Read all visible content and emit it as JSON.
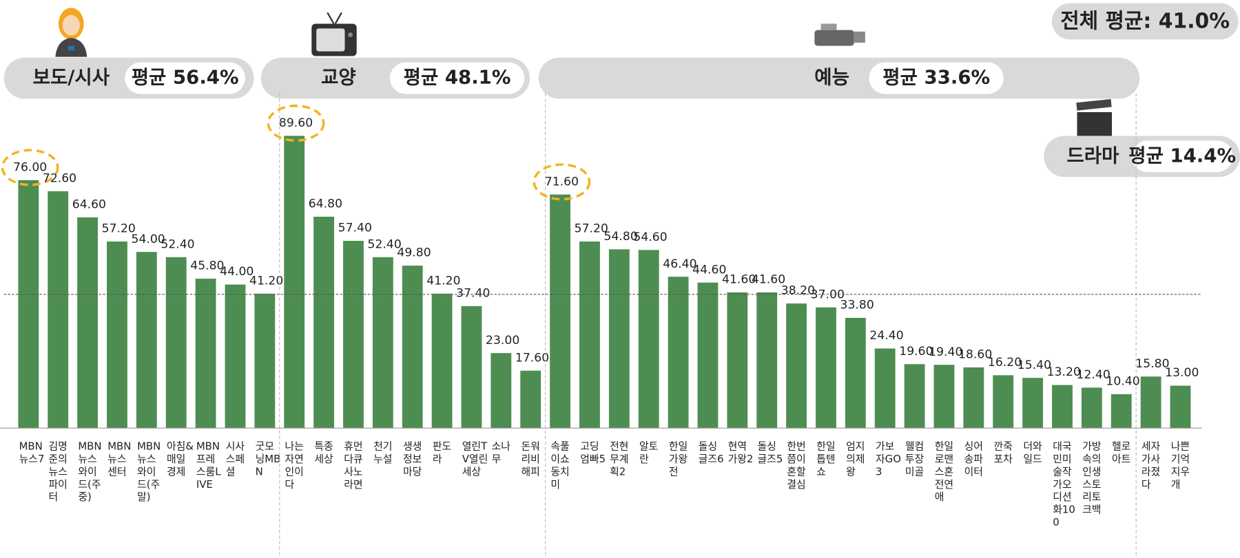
{
  "chart_data": {
    "type": "bar",
    "color": "#4e8d52",
    "overall": {
      "label": "전체 평균: 41.0%",
      "value": 41.0
    },
    "groups": [
      {
        "name": "보도/시사",
        "average_label": "평균 56.4%",
        "highlight": true,
        "categories": [
          "MBN뉴스7",
          "김명준의뉴스파이터",
          "MBN뉴스와이드(주중)",
          "MBN뉴스센터",
          "MBN뉴스와이드(주말)",
          "아침&매일경제",
          "MBN프레스룸LIVE",
          "시사스페셜",
          "굿모닝MBN"
        ],
        "values": [
          76.0,
          72.6,
          64.6,
          57.2,
          54.0,
          52.4,
          45.8,
          44.0,
          41.2
        ],
        "value_labels": [
          "76.00",
          "72.60",
          "64.60",
          "57.20",
          "54.00",
          "52.40",
          "45.80",
          "44.00",
          "41.20"
        ]
      },
      {
        "name": "교양",
        "average_label": "평균 48.1%",
        "highlight": true,
        "categories": [
          "나는자연인이다",
          "특종세상",
          "휴먼다큐사노라면",
          "천기누설",
          "생생정보마당",
          "판도라",
          "열린TV열린세상",
          "소나무",
          "돈워리비해피"
        ],
        "values": [
          89.6,
          64.8,
          57.4,
          52.4,
          49.8,
          41.2,
          37.4,
          23.0,
          17.6
        ],
        "value_labels": [
          "89.60",
          "64.80",
          "57.40",
          "52.40",
          "49.80",
          "41.20",
          "37.40",
          "23.00",
          "17.60"
        ]
      },
      {
        "name": "예능",
        "average_label": "평균 33.6%",
        "highlight": true,
        "categories": [
          "속풀이쇼동치미",
          "고딩엄빠5",
          "전현무계획2",
          "알토란",
          "한일가왕전",
          "돌싱글즈6",
          "현역가왕2",
          "돌싱글즈5",
          "한번쯤이혼할결심",
          "한일톱텐쇼",
          "엄지의제왕",
          "가보자GO3",
          "웰컴투장미골",
          "한일로맨스혼전연애",
          "싱어송파이터",
          "깐죽포차",
          "더와일드",
          "대국민미술작가오디션화100",
          "가방속의인생스토리토크백",
          "헬로아트"
        ],
        "values": [
          71.6,
          57.2,
          54.8,
          54.6,
          46.4,
          44.6,
          41.6,
          41.6,
          38.2,
          37.0,
          33.8,
          24.4,
          19.6,
          19.4,
          18.6,
          16.2,
          15.4,
          13.2,
          12.4,
          10.4
        ],
        "value_labels": [
          "71.60",
          "57.20",
          "54.80",
          "54.60",
          "46.40",
          "44.60",
          "41.60",
          "41.60",
          "38.20",
          "37.00",
          "33.80",
          "24.40",
          "19.60",
          "19.40",
          "18.60",
          "16.20",
          "15.40",
          "13.20",
          "12.40",
          "10.40"
        ]
      },
      {
        "name": "드라마",
        "average_label": "평균 14.4%",
        "highlight": false,
        "categories": [
          "세자가사라졌다",
          "나쁜기억지우개"
        ],
        "values": [
          15.8,
          13.0
        ],
        "value_labels": [
          "15.80",
          "13.00"
        ]
      }
    ]
  }
}
